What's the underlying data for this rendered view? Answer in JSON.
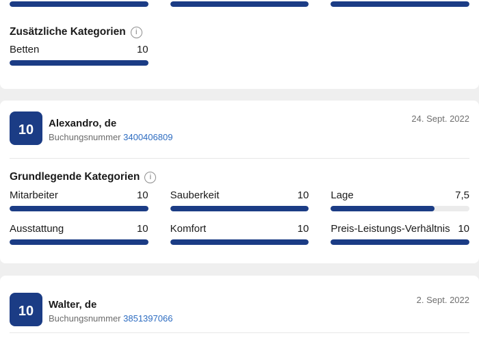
{
  "colors": {
    "navy": "#1b3c85",
    "track": "#ebebeb",
    "link": "#2d6cc1",
    "text_dark": "#1a1a1a",
    "text_gray": "#6b6b6b",
    "divider": "#e7e7e7",
    "page_gap": "#efefef",
    "card_bg": "#ffffff"
  },
  "top_partial_review": {
    "bars": [
      {
        "percent": 100
      },
      {
        "percent": 100
      },
      {
        "percent": 100
      }
    ],
    "extra_categories": {
      "title": "Zusätzliche Kategorien",
      "info_icon": "i",
      "items": [
        {
          "label": "Betten",
          "value": "10",
          "percent": 100
        }
      ]
    }
  },
  "reviews": [
    {
      "score": "10",
      "name": "Alexandro, de",
      "booking_label": "Buchungsnummer",
      "booking_number": "3400406809",
      "date": "24. Sept. 2022",
      "basic_categories": {
        "title": "Grundlegende Kategorien",
        "info_icon": "i",
        "items": [
          {
            "label": "Mitarbeiter",
            "value": "10",
            "percent": 100
          },
          {
            "label": "Sauberkeit",
            "value": "10",
            "percent": 100
          },
          {
            "label": "Lage",
            "value": "7,5",
            "percent": 75
          },
          {
            "label": "Ausstattung",
            "value": "10",
            "percent": 100
          },
          {
            "label": "Komfort",
            "value": "10",
            "percent": 100
          },
          {
            "label": "Preis-Leistungs-Verhältnis",
            "value": "10",
            "percent": 100
          }
        ]
      }
    },
    {
      "score": "10",
      "name": "Walter, de",
      "booking_label": "Buchungsnummer",
      "booking_number": "3851397066",
      "date": "2. Sept. 2022"
    }
  ]
}
